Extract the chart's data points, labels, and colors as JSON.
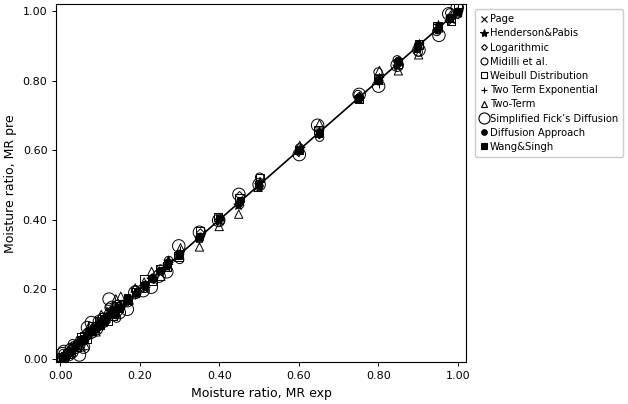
{
  "title": "",
  "xlabel": "Moisture ratio, MR exp",
  "ylabel": "Moisture ratio, MR pre",
  "xticks": [
    0.0,
    0.2,
    0.4,
    0.6,
    0.8,
    1.0
  ],
  "yticks": [
    0.0,
    0.2,
    0.4,
    0.6,
    0.8,
    1.0
  ],
  "background_color": "#f0f0f0",
  "legend_entries": [
    {
      "label": "Page",
      "marker": "x",
      "filled": true,
      "markersize": 5
    },
    {
      "label": "Henderson&Pabis",
      "marker": "*",
      "filled": true,
      "markersize": 7
    },
    {
      "label": "Logarithmic",
      "marker": "D",
      "filled": false,
      "markersize": 4
    },
    {
      "label": "Midilli et al.",
      "marker": "o",
      "filled": false,
      "markersize": 6
    },
    {
      "label": "Weibull Distribution",
      "marker": "s",
      "filled": false,
      "markersize": 6
    },
    {
      "label": "Two Term Exponential",
      "marker": "+",
      "filled": true,
      "markersize": 6
    },
    {
      "label": "Two-Term",
      "marker": "^",
      "filled": false,
      "markersize": 6
    },
    {
      "label": "Simplified Fick’s Diffusion",
      "marker": "o",
      "filled": false,
      "markersize": 9
    },
    {
      "label": "Diffusion Approach",
      "marker": "o",
      "filled": true,
      "markersize": 5
    },
    {
      "label": "Wang&Singh",
      "marker": "s",
      "filled": true,
      "markersize": 5
    }
  ],
  "scatter_x": [
    0.005,
    0.01,
    0.02,
    0.03,
    0.04,
    0.05,
    0.06,
    0.07,
    0.08,
    0.09,
    0.1,
    0.11,
    0.12,
    0.13,
    0.14,
    0.15,
    0.17,
    0.19,
    0.21,
    0.23,
    0.25,
    0.27,
    0.3,
    0.35,
    0.4,
    0.45,
    0.5,
    0.6,
    0.65,
    0.75,
    0.8,
    0.85,
    0.9,
    0.95,
    0.98,
    1.0
  ],
  "line_color": "#000000",
  "line_width": 1.2
}
